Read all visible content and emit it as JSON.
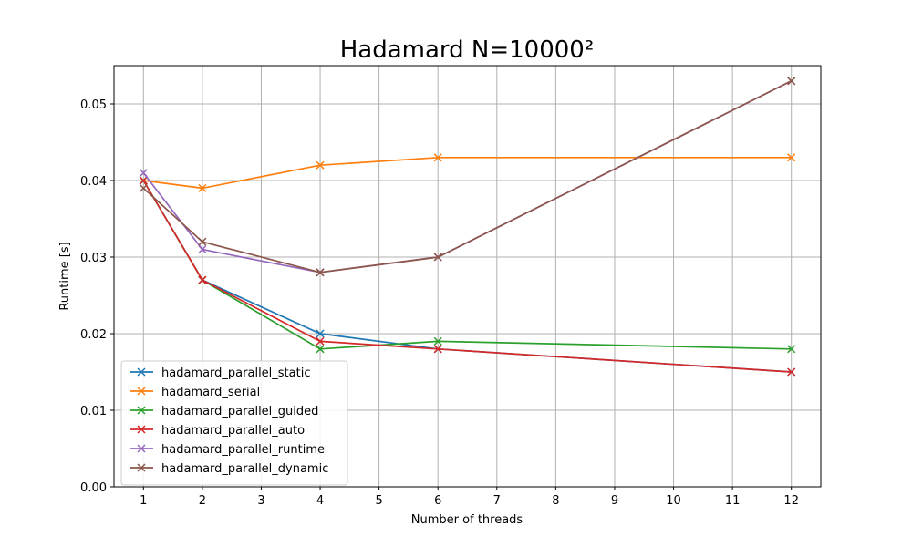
{
  "chart_data": {
    "type": "line",
    "title": "Hadamard N=10000²",
    "xlabel": "Number of threads",
    "ylabel": "Runtime [s]",
    "xlim": [
      0.5,
      12.5
    ],
    "ylim": [
      0,
      0.055
    ],
    "xticks": [
      1,
      2,
      3,
      4,
      5,
      6,
      7,
      8,
      9,
      10,
      11,
      12
    ],
    "yticks": [
      0.0,
      0.01,
      0.02,
      0.03,
      0.04,
      0.05
    ],
    "ytick_labels": [
      "0.00",
      "0.01",
      "0.02",
      "0.03",
      "0.04",
      "0.05"
    ],
    "grid": true,
    "legend_position": "lower-left",
    "marker": "x",
    "x": [
      1,
      2,
      4,
      6,
      12
    ],
    "series": [
      {
        "name": "hadamard_parallel_static",
        "color": "#1f77b4",
        "values": [
          0.04,
          0.027,
          0.02,
          0.018,
          0.015
        ]
      },
      {
        "name": "hadamard_serial",
        "color": "#ff7f0e",
        "values": [
          0.04,
          0.039,
          0.042,
          0.043,
          0.043
        ]
      },
      {
        "name": "hadamard_parallel_guided",
        "color": "#2ca02c",
        "values": [
          0.04,
          0.027,
          0.018,
          0.019,
          0.018
        ]
      },
      {
        "name": "hadamard_parallel_auto",
        "color": "#d62728",
        "values": [
          0.04,
          0.027,
          0.019,
          0.018,
          0.015
        ]
      },
      {
        "name": "hadamard_parallel_runtime",
        "color": "#9467bd",
        "values": [
          0.041,
          0.031,
          0.028,
          0.03,
          0.053
        ]
      },
      {
        "name": "hadamard_parallel_dynamic",
        "color": "#8c564b",
        "values": [
          0.039,
          0.032,
          0.028,
          0.03,
          0.053
        ]
      }
    ]
  }
}
